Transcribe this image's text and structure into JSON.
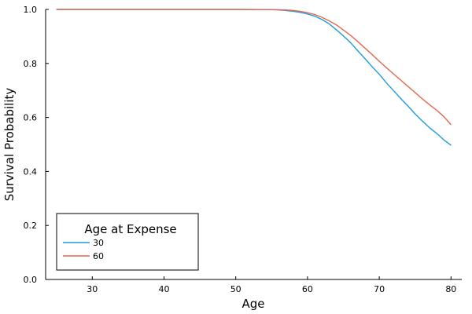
{
  "chart_data": {
    "type": "line",
    "xlabel": "Age",
    "ylabel": "Survival Probability",
    "xlim": [
      23.5,
      81.5
    ],
    "ylim": [
      0.0,
      1.0
    ],
    "xticks": [
      30,
      40,
      50,
      60,
      70,
      80
    ],
    "yticks": [
      0.0,
      0.2,
      0.4,
      0.6,
      0.8,
      1.0
    ],
    "xtick_labels": [
      "30",
      "40",
      "50",
      "60",
      "70",
      "80"
    ],
    "ytick_labels": [
      "0.0",
      "0.2",
      "0.4",
      "0.6",
      "0.8",
      "1.0"
    ],
    "grid": false,
    "legend": {
      "title": "Age at Expense",
      "placement": "bottom-left"
    },
    "series": [
      {
        "name": "30",
        "color": "#1f9be0",
        "x": [
          25,
          50,
          55,
          56,
          57,
          58,
          59,
          60,
          61,
          62,
          63,
          64,
          65,
          66,
          67,
          68,
          69,
          70,
          71,
          72,
          73,
          74,
          75,
          76,
          77,
          78,
          79,
          80
        ],
        "y": [
          1.0,
          1.0,
          0.999,
          0.998,
          0.996,
          0.993,
          0.989,
          0.983,
          0.975,
          0.963,
          0.947,
          0.925,
          0.902,
          0.877,
          0.847,
          0.818,
          0.788,
          0.76,
          0.728,
          0.699,
          0.67,
          0.642,
          0.613,
          0.587,
          0.562,
          0.541,
          0.517,
          0.497
        ]
      },
      {
        "name": "60",
        "color": "#e3694c",
        "x": [
          25,
          50,
          55,
          56,
          57,
          58,
          59,
          60,
          61,
          62,
          63,
          64,
          65,
          66,
          67,
          68,
          69,
          70,
          71,
          72,
          73,
          74,
          75,
          76,
          77,
          78,
          79,
          80
        ],
        "y": [
          1.0,
          1.0,
          0.999,
          0.999,
          0.998,
          0.996,
          0.993,
          0.988,
          0.981,
          0.971,
          0.958,
          0.943,
          0.924,
          0.904,
          0.881,
          0.857,
          0.833,
          0.808,
          0.784,
          0.761,
          0.738,
          0.715,
          0.692,
          0.669,
          0.647,
          0.627,
          0.603,
          0.573
        ]
      }
    ]
  }
}
